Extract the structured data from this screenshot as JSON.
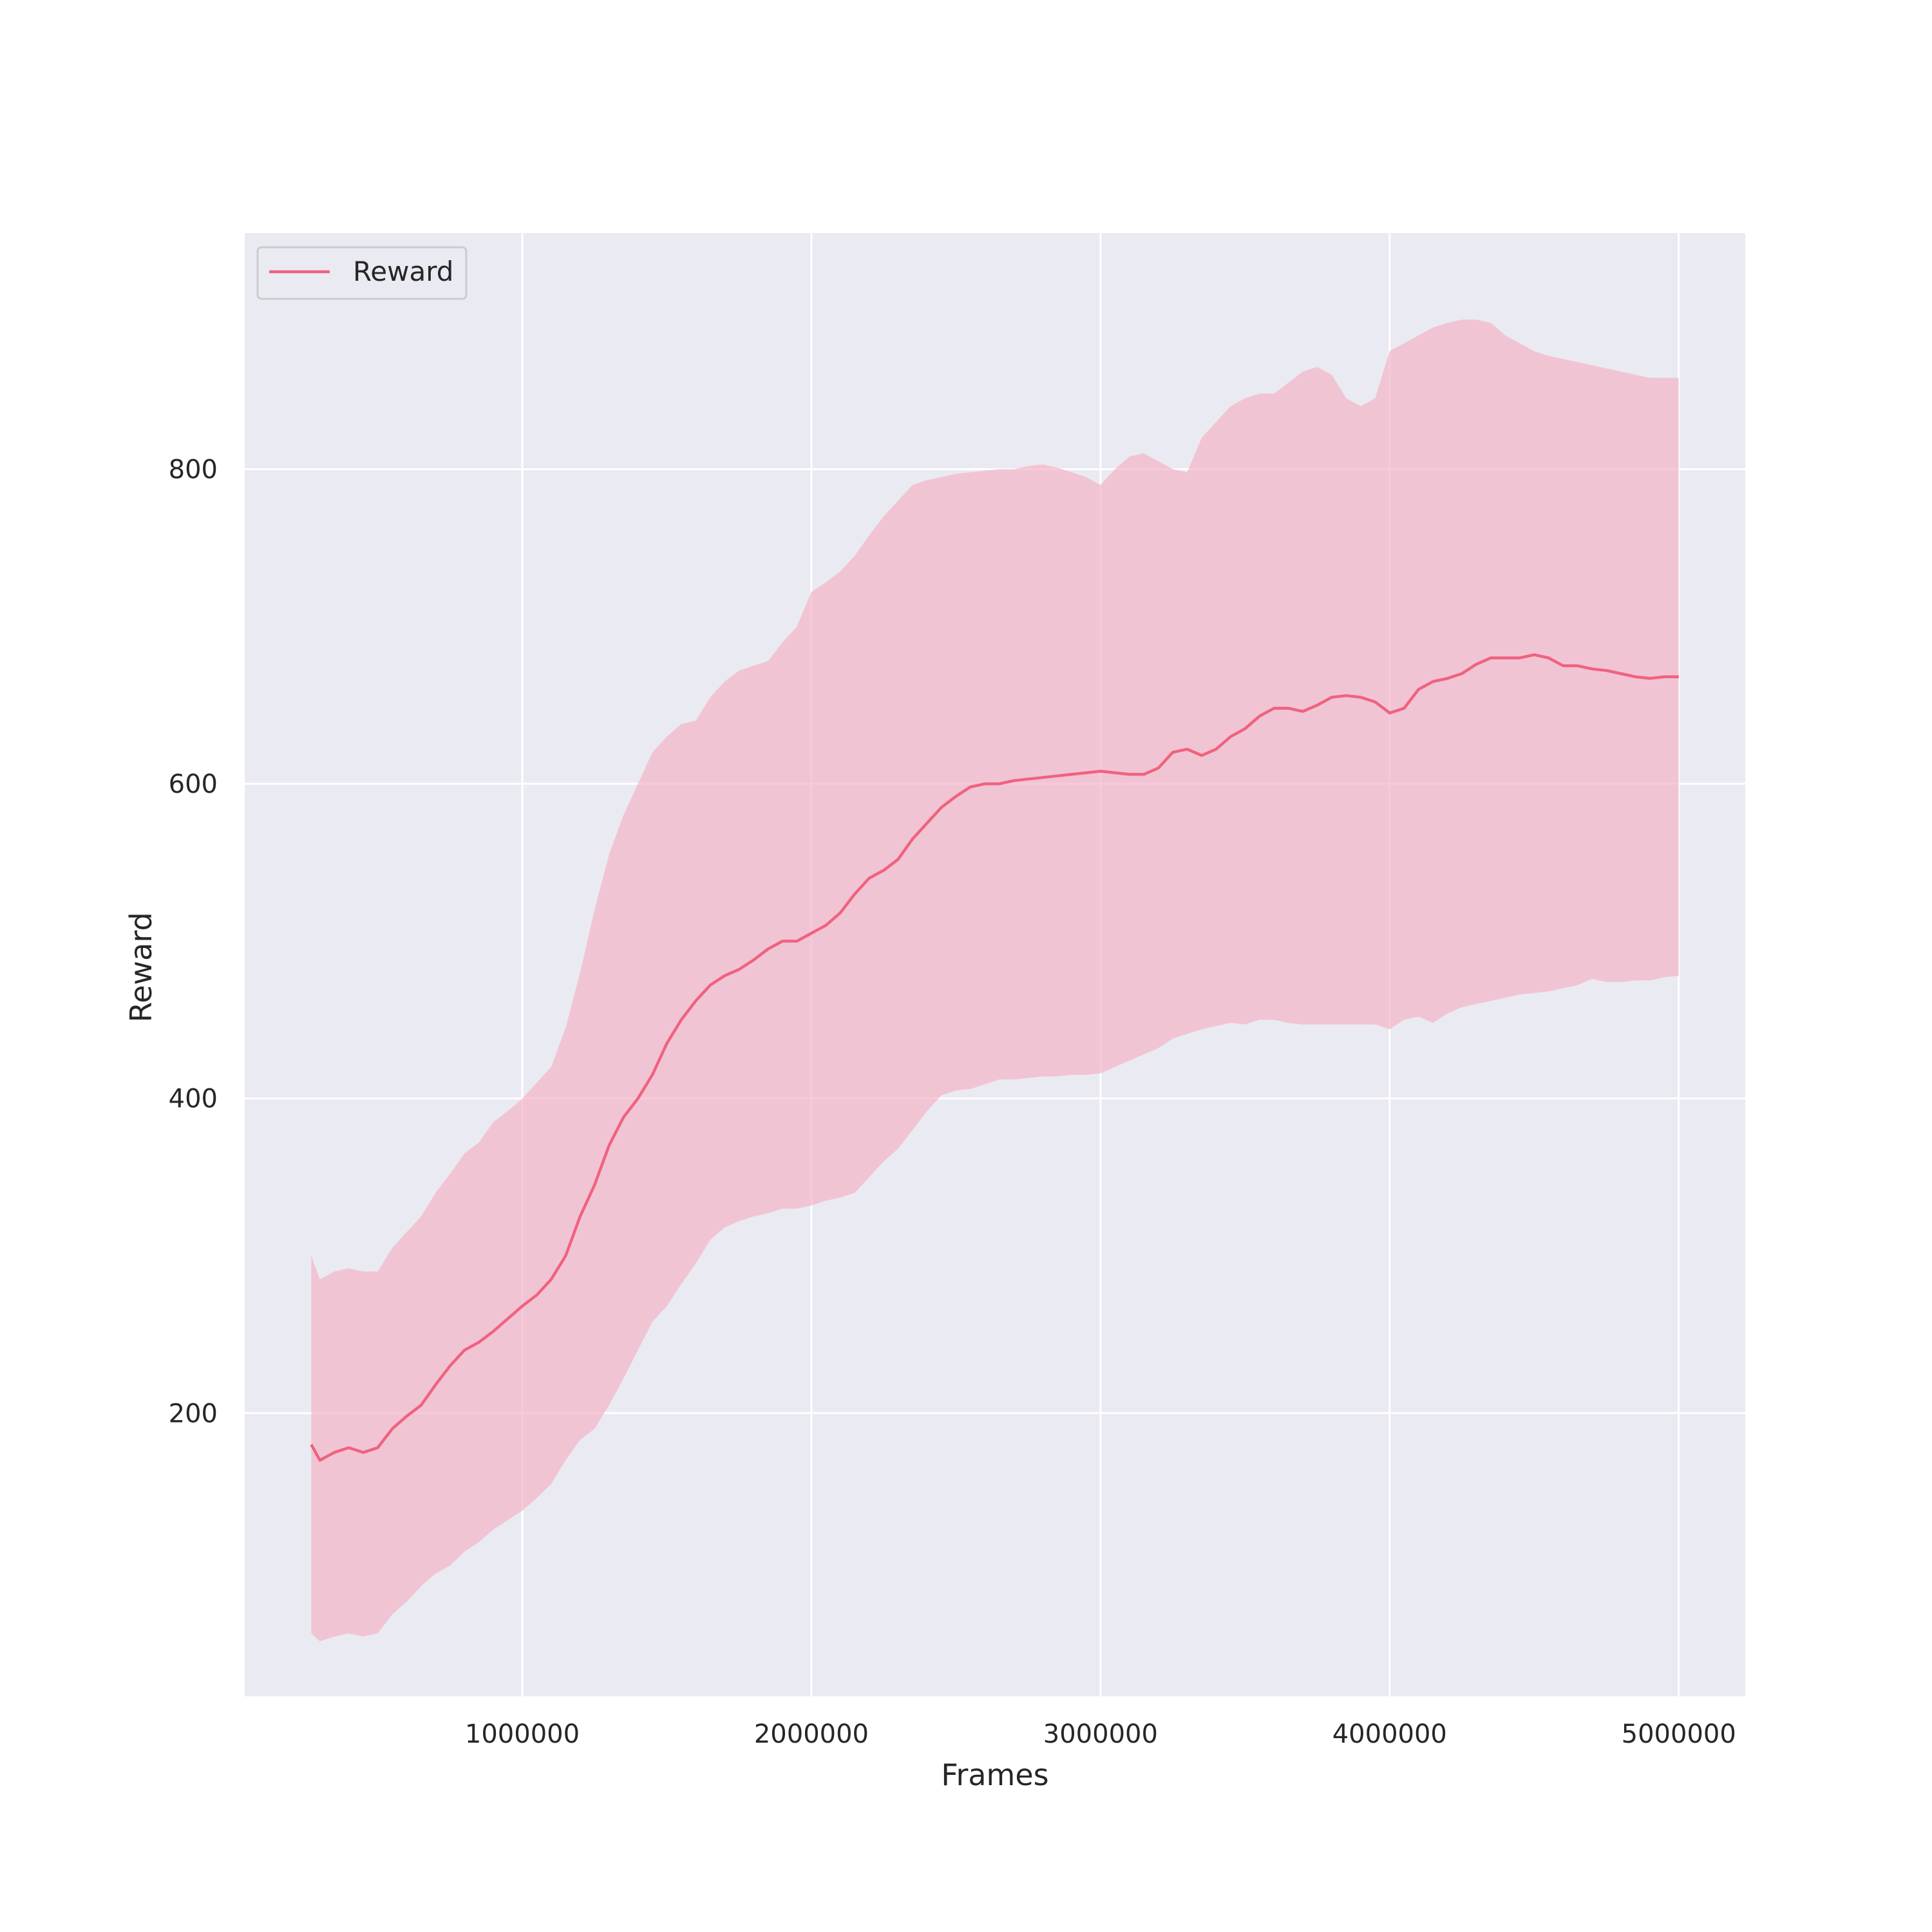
{
  "chart_data": {
    "type": "line",
    "title": "",
    "xlabel": "Frames",
    "ylabel": "Reward",
    "xlim": [
      40000,
      5230000
    ],
    "ylim": [
      20,
      950
    ],
    "xticks": [
      1000000,
      2000000,
      3000000,
      4000000,
      5000000
    ],
    "xtick_labels": [
      "1000000",
      "2000000",
      "3000000",
      "4000000",
      "5000000"
    ],
    "yticks": [
      200,
      400,
      600,
      800
    ],
    "ytick_labels": [
      "200",
      "400",
      "600",
      "800"
    ],
    "grid": true,
    "legend_position": "top-left",
    "colors": {
      "line": "#f0627f",
      "band": "#f4b6c8",
      "plot_bg": "#eaeaf2",
      "grid": "#ffffff"
    },
    "series": [
      {
        "name": "Reward",
        "x": [
          270000,
          300000,
          350000,
          400000,
          450000,
          500000,
          550000,
          600000,
          650000,
          700000,
          750000,
          800000,
          850000,
          900000,
          950000,
          1000000,
          1050000,
          1100000,
          1150000,
          1200000,
          1250000,
          1300000,
          1350000,
          1400000,
          1450000,
          1500000,
          1550000,
          1600000,
          1650000,
          1700000,
          1750000,
          1800000,
          1850000,
          1900000,
          1950000,
          2000000,
          2050000,
          2100000,
          2150000,
          2200000,
          2250000,
          2300000,
          2350000,
          2400000,
          2450000,
          2500000,
          2550000,
          2600000,
          2650000,
          2700000,
          2750000,
          2800000,
          2850000,
          2900000,
          2950000,
          3000000,
          3050000,
          3100000,
          3150000,
          3200000,
          3250000,
          3300000,
          3350000,
          3400000,
          3450000,
          3500000,
          3550000,
          3600000,
          3650000,
          3700000,
          3750000,
          3800000,
          3850000,
          3900000,
          3950000,
          4000000,
          4050000,
          4100000,
          4150000,
          4200000,
          4250000,
          4300000,
          4350000,
          4400000,
          4450000,
          4500000,
          4550000,
          4600000,
          4650000,
          4700000,
          4750000,
          4800000,
          4850000,
          4900000,
          4950000,
          5000000
        ],
        "mean": [
          180,
          170,
          175,
          178,
          175,
          178,
          190,
          198,
          205,
          218,
          230,
          240,
          245,
          252,
          260,
          268,
          275,
          285,
          300,
          325,
          345,
          370,
          388,
          400,
          415,
          435,
          450,
          462,
          472,
          478,
          482,
          488,
          495,
          500,
          500,
          505,
          510,
          518,
          530,
          540,
          545,
          552,
          565,
          575,
          585,
          592,
          598,
          600,
          600,
          602,
          603,
          604,
          605,
          606,
          607,
          608,
          607,
          606,
          606,
          610,
          620,
          622,
          618,
          622,
          630,
          635,
          643,
          648,
          648,
          646,
          650,
          655,
          656,
          655,
          652,
          645,
          648,
          660,
          665,
          667,
          670,
          676,
          680,
          680,
          680,
          682,
          680,
          675,
          675,
          673,
          672,
          670,
          668,
          667,
          668,
          668
        ],
        "lower": [
          60,
          55,
          58,
          60,
          58,
          60,
          72,
          80,
          90,
          98,
          103,
          112,
          118,
          126,
          132,
          138,
          146,
          155,
          170,
          183,
          190,
          205,
          222,
          240,
          258,
          268,
          282,
          295,
          310,
          318,
          322,
          325,
          327,
          330,
          330,
          332,
          335,
          337,
          340,
          350,
          360,
          368,
          380,
          392,
          402,
          405,
          406,
          409,
          412,
          412,
          413,
          414,
          414,
          415,
          415,
          416,
          420,
          424,
          428,
          432,
          438,
          441,
          444,
          446,
          448,
          447,
          450,
          450,
          448,
          447,
          447,
          447,
          447,
          447,
          447,
          444,
          450,
          452,
          448,
          454,
          458,
          460,
          462,
          464,
          466,
          467,
          468,
          470,
          472,
          476,
          474,
          474,
          475,
          475,
          477,
          478
        ],
        "upper": [
          300,
          285,
          290,
          292,
          290,
          290,
          305,
          315,
          325,
          340,
          352,
          365,
          372,
          385,
          392,
          400,
          410,
          420,
          445,
          480,
          520,
          555,
          580,
          600,
          620,
          630,
          638,
          640,
          655,
          665,
          672,
          675,
          678,
          690,
          700,
          722,
          728,
          735,
          745,
          758,
          770,
          780,
          790,
          793,
          795,
          797,
          798,
          799,
          800,
          800,
          802,
          803,
          801,
          798,
          795,
          790,
          800,
          808,
          810,
          805,
          800,
          798,
          820,
          830,
          840,
          845,
          848,
          848,
          855,
          862,
          865,
          860,
          845,
          840,
          845,
          875,
          880,
          885,
          890,
          893,
          895,
          895,
          893,
          885,
          880,
          875,
          872,
          870,
          868,
          866,
          864,
          862,
          860,
          858,
          858,
          858
        ]
      }
    ]
  }
}
